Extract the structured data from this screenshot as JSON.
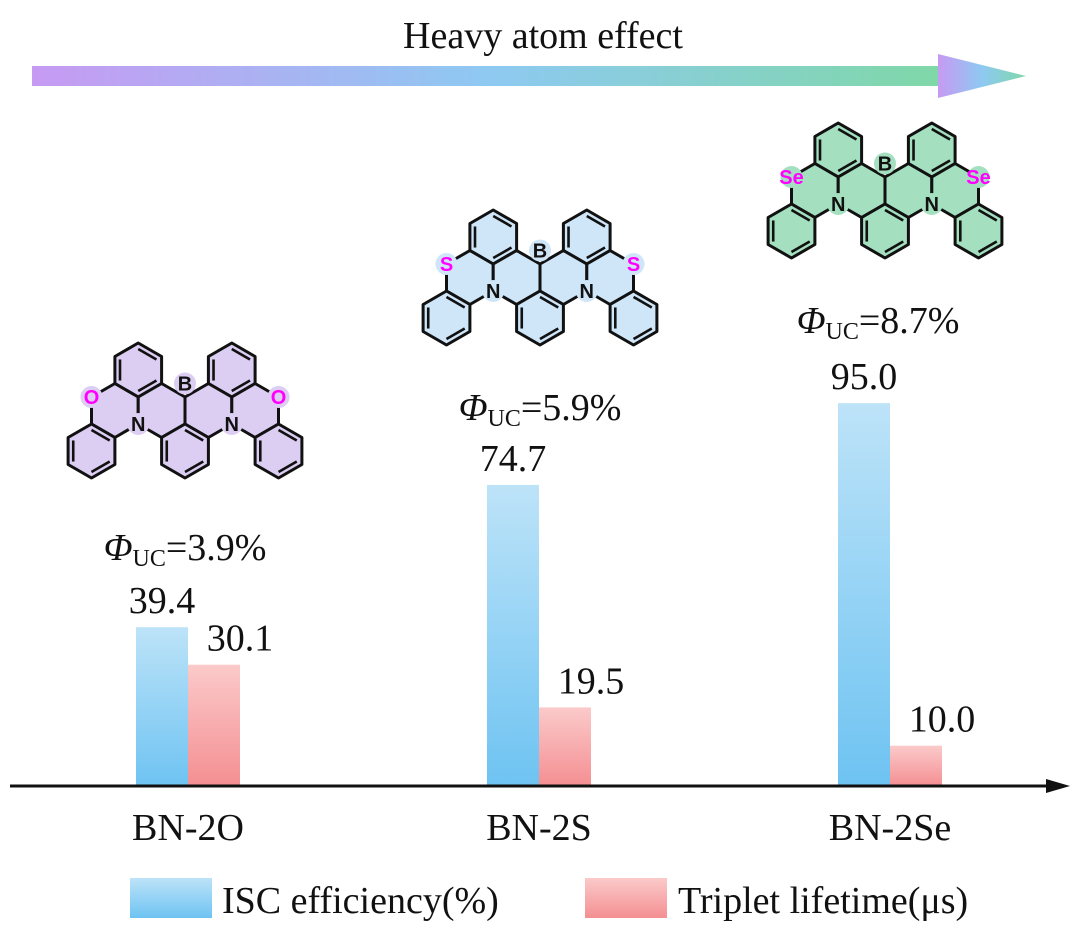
{
  "chart_data": {
    "type": "bar",
    "header": "Heavy atom effect",
    "categories": [
      "BN-2O",
      "BN-2S",
      "BN-2Se"
    ],
    "series": [
      {
        "name": "ISC efficiency(%)",
        "values": [
          39.4,
          74.7,
          95.0
        ],
        "value_labels": [
          "39.4",
          "74.7",
          "95.0"
        ],
        "color_top": "#bde3f8",
        "color_bottom": "#6ec3f2"
      },
      {
        "name": "Triplet lifetime(μs)",
        "values": [
          30.1,
          19.5,
          10.0
        ],
        "value_labels": [
          "30.1",
          "19.5",
          "10.0"
        ],
        "color_top": "#fbcaca",
        "color_bottom": "#f48f92"
      }
    ],
    "structures": [
      {
        "compound": "BN-2O",
        "heteroatom": "O",
        "fill": "#dccdf2",
        "phi_symbol": "Φ",
        "phi_sub": "UC",
        "phi_value": "=3.9%"
      },
      {
        "compound": "BN-2S",
        "heteroatom": "S",
        "fill": "#cfe5f8",
        "phi_symbol": "Φ",
        "phi_sub": "UC",
        "phi_value": "=5.9%"
      },
      {
        "compound": "BN-2Se",
        "heteroatom": "Se",
        "fill": "#a4dfc0",
        "phi_symbol": "Φ",
        "phi_sub": "UC",
        "phi_value": "=8.7%"
      }
    ],
    "atom_labels": {
      "boron": "B",
      "nitrogen": "N"
    },
    "arrow_gradient": [
      "#c79af3",
      "#8ec9f2",
      "#7fd8a7"
    ],
    "heteroatom_color": "#ff00ff",
    "ylim": [
      0,
      100
    ],
    "legend_position": "bottom"
  }
}
